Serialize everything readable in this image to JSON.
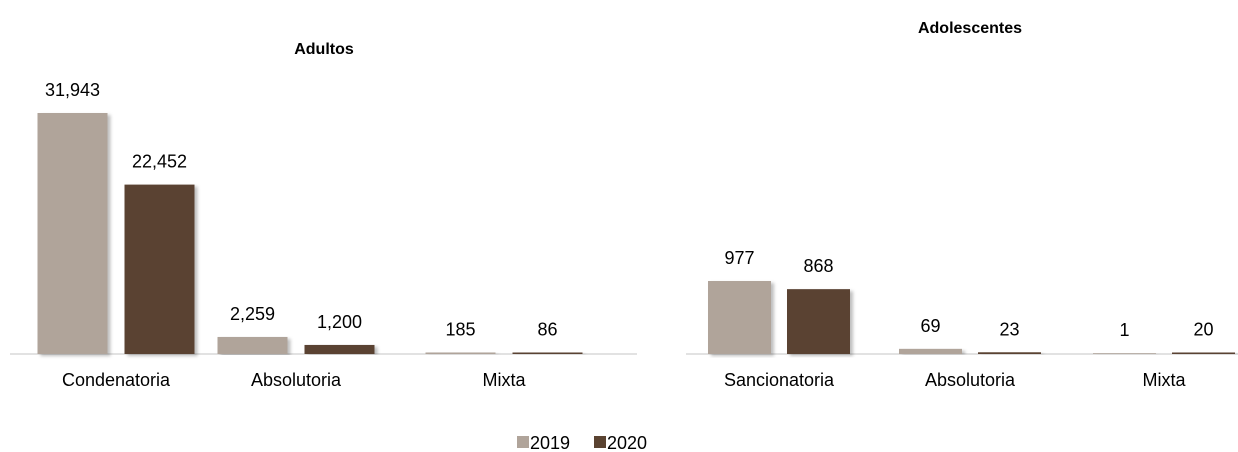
{
  "chart_data": [
    {
      "type": "bar",
      "title": "Adultos",
      "categories": [
        "Condenatoria",
        "Absolutoria",
        "Mixta"
      ],
      "series": [
        {
          "name": "2019",
          "values": [
            31943,
            2259,
            185
          ],
          "labels": [
            "31,943",
            "2,259",
            "185"
          ]
        },
        {
          "name": "2020",
          "values": [
            22452,
            1200,
            86
          ],
          "labels": [
            "22,452",
            "1,200",
            "86"
          ]
        }
      ],
      "ylim": [
        0,
        31943
      ]
    },
    {
      "type": "bar",
      "title": "Adolescentes",
      "categories": [
        "Sancionatoria",
        "Absolutoria",
        "Mixta"
      ],
      "series": [
        {
          "name": "2019",
          "values": [
            977,
            69,
            1
          ],
          "labels": [
            "977",
            "69",
            "1"
          ]
        },
        {
          "name": "2020",
          "values": [
            868,
            23,
            20
          ],
          "labels": [
            "868",
            "23",
            "20"
          ]
        }
      ],
      "ylim": [
        0,
        977
      ]
    }
  ],
  "legend": {
    "placement": "bottom-center",
    "items": [
      {
        "label": "2019",
        "color": "#b0a49a"
      },
      {
        "label": "2020",
        "color": "#5a4331"
      }
    ]
  },
  "colors": {
    "series_2019": "#b0a49a",
    "series_2020": "#5a4331",
    "axis": "#d9d9d9"
  }
}
